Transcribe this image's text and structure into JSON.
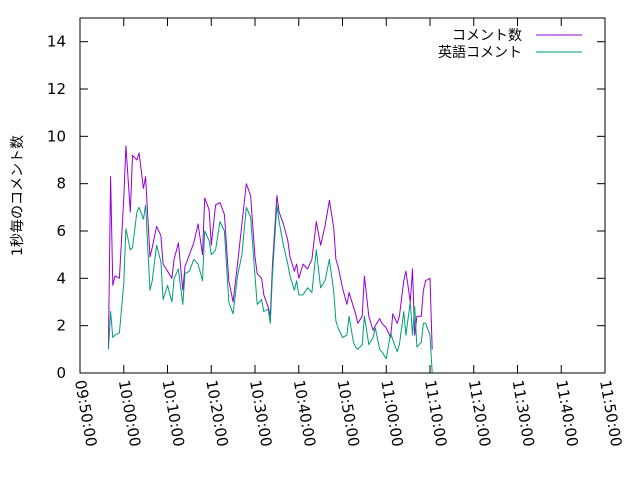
{
  "chart_data": {
    "type": "line",
    "ylabel": "1秒毎のコメント数",
    "xlabel": "",
    "ylim": [
      0,
      15
    ],
    "yticks": [
      0,
      2,
      4,
      6,
      8,
      10,
      12,
      14
    ],
    "xlim": [
      "09:50:00",
      "11:50:00"
    ],
    "xticks": [
      "09:50:00",
      "10:00:00",
      "10:10:00",
      "10:20:00",
      "10:30:00",
      "10:40:00",
      "10:50:00",
      "11:00:00",
      "11:10:00",
      "11:20:00",
      "11:30:00",
      "11:40:00",
      "11:50:00"
    ],
    "grid": false,
    "legend_position": "top-right",
    "series": [
      {
        "name": "コメント数",
        "color": "#9400d3",
        "points": [
          [
            "09:56:30",
            1.1
          ],
          [
            "09:57:00",
            8.3
          ],
          [
            "09:57:30",
            3.7
          ],
          [
            "09:58:00",
            4.1
          ],
          [
            "09:59:00",
            4.0
          ],
          [
            "10:00:00",
            7.4
          ],
          [
            "10:00:30",
            9.6
          ],
          [
            "10:01:30",
            6.8
          ],
          [
            "10:02:00",
            9.2
          ],
          [
            "10:03:00",
            9.0
          ],
          [
            "10:03:30",
            9.3
          ],
          [
            "10:04:30",
            7.8
          ],
          [
            "10:05:00",
            8.3
          ],
          [
            "10:06:00",
            4.9
          ],
          [
            "10:06:30",
            5.3
          ],
          [
            "10:07:30",
            6.2
          ],
          [
            "10:08:30",
            5.8
          ],
          [
            "10:09:00",
            4.6
          ],
          [
            "10:10:00",
            4.3
          ],
          [
            "10:11:00",
            4.0
          ],
          [
            "10:11:30",
            4.8
          ],
          [
            "10:12:30",
            5.5
          ],
          [
            "10:13:30",
            3.5
          ],
          [
            "10:14:00",
            4.5
          ],
          [
            "10:15:00",
            5.0
          ],
          [
            "10:16:00",
            5.5
          ],
          [
            "10:17:00",
            6.3
          ],
          [
            "10:18:00",
            5.0
          ],
          [
            "10:18:30",
            7.4
          ],
          [
            "10:19:30",
            6.9
          ],
          [
            "10:20:00",
            5.4
          ],
          [
            "10:21:00",
            7.1
          ],
          [
            "10:22:00",
            7.2
          ],
          [
            "10:23:00",
            6.7
          ],
          [
            "10:24:00",
            3.9
          ],
          [
            "10:25:00",
            3.0
          ],
          [
            "10:26:00",
            4.6
          ],
          [
            "10:27:00",
            6.3
          ],
          [
            "10:28:00",
            8.0
          ],
          [
            "10:29:00",
            7.5
          ],
          [
            "10:30:00",
            4.9
          ],
          [
            "10:30:30",
            4.2
          ],
          [
            "10:31:30",
            4.0
          ],
          [
            "10:32:00",
            3.3
          ],
          [
            "10:33:00",
            2.8
          ],
          [
            "10:33:30",
            2.4
          ],
          [
            "10:34:00",
            4.6
          ],
          [
            "10:35:00",
            7.5
          ],
          [
            "10:35:30",
            6.8
          ],
          [
            "10:36:30",
            6.3
          ],
          [
            "10:37:30",
            5.6
          ],
          [
            "10:38:00",
            4.9
          ],
          [
            "10:39:00",
            4.3
          ],
          [
            "10:39:30",
            4.6
          ],
          [
            "10:40:00",
            4.0
          ],
          [
            "10:41:00",
            4.6
          ],
          [
            "10:42:00",
            4.4
          ],
          [
            "10:43:00",
            4.8
          ],
          [
            "10:44:00",
            6.4
          ],
          [
            "10:45:00",
            5.4
          ],
          [
            "10:46:00",
            6.2
          ],
          [
            "10:47:00",
            7.3
          ],
          [
            "10:48:00",
            6.1
          ],
          [
            "10:48:30",
            4.8
          ],
          [
            "10:49:00",
            4.5
          ],
          [
            "10:50:00",
            3.6
          ],
          [
            "10:51:00",
            2.9
          ],
          [
            "10:51:30",
            3.4
          ],
          [
            "10:52:30",
            2.8
          ],
          [
            "10:53:00",
            2.5
          ],
          [
            "10:53:30",
            2.1
          ],
          [
            "10:54:30",
            2.4
          ],
          [
            "10:55:00",
            4.1
          ],
          [
            "10:56:00",
            2.4
          ],
          [
            "10:57:00",
            1.8
          ],
          [
            "10:57:30",
            2.0
          ],
          [
            "10:58:30",
            2.3
          ],
          [
            "10:59:00",
            2.1
          ],
          [
            "11:00:00",
            1.9
          ],
          [
            "11:01:00",
            1.5
          ],
          [
            "11:01:30",
            2.5
          ],
          [
            "11:02:30",
            2.1
          ],
          [
            "11:03:00",
            2.4
          ],
          [
            "11:04:00",
            3.9
          ],
          [
            "11:04:30",
            4.3
          ],
          [
            "11:05:30",
            3.0
          ],
          [
            "11:06:00",
            4.4
          ],
          [
            "11:06:30",
            1.6
          ],
          [
            "11:07:00",
            2.4
          ],
          [
            "11:08:00",
            2.4
          ],
          [
            "11:08:30",
            3.5
          ],
          [
            "11:09:00",
            3.9
          ],
          [
            "11:10:00",
            4.0
          ],
          [
            "11:10:30",
            1.0
          ]
        ]
      },
      {
        "name": "英語コメント",
        "color": "#009e73",
        "points": [
          [
            "09:56:30",
            1.0
          ],
          [
            "09:57:00",
            2.6
          ],
          [
            "09:57:30",
            1.5
          ],
          [
            "09:58:00",
            1.6
          ],
          [
            "09:59:00",
            1.7
          ],
          [
            "10:00:00",
            3.8
          ],
          [
            "10:00:30",
            6.1
          ],
          [
            "10:01:30",
            5.2
          ],
          [
            "10:02:00",
            5.3
          ],
          [
            "10:03:00",
            6.8
          ],
          [
            "10:03:30",
            7.0
          ],
          [
            "10:04:30",
            6.5
          ],
          [
            "10:05:00",
            7.1
          ],
          [
            "10:06:00",
            3.5
          ],
          [
            "10:06:30",
            3.9
          ],
          [
            "10:07:30",
            5.4
          ],
          [
            "10:08:30",
            4.7
          ],
          [
            "10:09:00",
            3.1
          ],
          [
            "10:10:00",
            3.7
          ],
          [
            "10:11:00",
            3.0
          ],
          [
            "10:11:30",
            4.0
          ],
          [
            "10:12:30",
            4.4
          ],
          [
            "10:13:30",
            2.9
          ],
          [
            "10:14:00",
            4.2
          ],
          [
            "10:15:00",
            4.3
          ],
          [
            "10:16:00",
            4.8
          ],
          [
            "10:17:00",
            4.6
          ],
          [
            "10:18:00",
            3.9
          ],
          [
            "10:18:30",
            6.0
          ],
          [
            "10:19:30",
            5.6
          ],
          [
            "10:20:00",
            5.0
          ],
          [
            "10:21:00",
            5.2
          ],
          [
            "10:22:00",
            6.4
          ],
          [
            "10:23:00",
            6.0
          ],
          [
            "10:24:00",
            3.0
          ],
          [
            "10:25:00",
            2.5
          ],
          [
            "10:26:00",
            4.1
          ],
          [
            "10:27:00",
            5.0
          ],
          [
            "10:28:00",
            7.0
          ],
          [
            "10:29:00",
            6.6
          ],
          [
            "10:30:00",
            4.1
          ],
          [
            "10:30:30",
            2.9
          ],
          [
            "10:31:30",
            3.1
          ],
          [
            "10:32:00",
            2.6
          ],
          [
            "10:33:00",
            2.7
          ],
          [
            "10:33:30",
            2.1
          ],
          [
            "10:34:00",
            4.2
          ],
          [
            "10:35:00",
            7.1
          ],
          [
            "10:35:30",
            6.4
          ],
          [
            "10:36:30",
            5.4
          ],
          [
            "10:37:30",
            4.6
          ],
          [
            "10:38:00",
            4.1
          ],
          [
            "10:39:00",
            3.5
          ],
          [
            "10:39:30",
            3.9
          ],
          [
            "10:40:00",
            3.3
          ],
          [
            "10:41:00",
            3.3
          ],
          [
            "10:42:00",
            3.6
          ],
          [
            "10:43:00",
            3.4
          ],
          [
            "10:44:00",
            5.2
          ],
          [
            "10:45:00",
            3.6
          ],
          [
            "10:46:00",
            3.9
          ],
          [
            "10:47:00",
            4.8
          ],
          [
            "10:48:00",
            3.4
          ],
          [
            "10:48:30",
            2.2
          ],
          [
            "10:49:00",
            1.9
          ],
          [
            "10:50:00",
            1.5
          ],
          [
            "10:51:00",
            1.6
          ],
          [
            "10:51:30",
            2.4
          ],
          [
            "10:52:30",
            1.3
          ],
          [
            "10:53:00",
            1.1
          ],
          [
            "10:53:30",
            1.0
          ],
          [
            "10:54:30",
            1.2
          ],
          [
            "10:55:00",
            2.4
          ],
          [
            "10:56:00",
            1.2
          ],
          [
            "10:57:00",
            1.5
          ],
          [
            "10:57:30",
            1.9
          ],
          [
            "10:58:30",
            1.0
          ],
          [
            "10:59:00",
            0.9
          ],
          [
            "11:00:00",
            0.6
          ],
          [
            "11:01:00",
            1.7
          ],
          [
            "11:01:30",
            1.4
          ],
          [
            "11:02:30",
            0.9
          ],
          [
            "11:03:00",
            1.2
          ],
          [
            "11:04:00",
            2.6
          ],
          [
            "11:04:30",
            1.6
          ],
          [
            "11:05:30",
            3.0
          ],
          [
            "11:06:00",
            1.6
          ],
          [
            "11:06:30",
            2.8
          ],
          [
            "11:07:00",
            1.1
          ],
          [
            "11:08:00",
            1.3
          ],
          [
            "11:08:30",
            2.1
          ],
          [
            "11:09:00",
            2.1
          ],
          [
            "11:10:00",
            1.6
          ],
          [
            "11:10:30",
            0.0
          ]
        ]
      }
    ]
  }
}
